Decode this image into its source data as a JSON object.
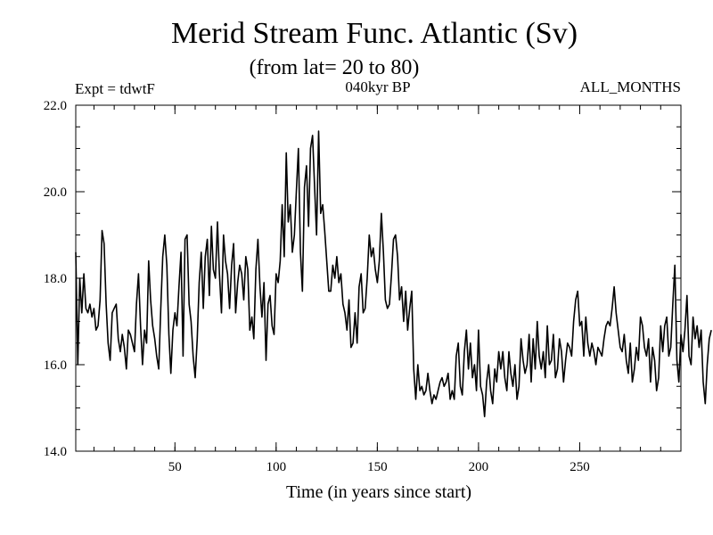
{
  "chart_data": {
    "type": "line",
    "title": "Merid Stream Func. Atlantic (Sv)",
    "subtitle": "(from lat= 20 to 80)",
    "left_label": "Expt = tdwtF",
    "center_label": "040kyr BP",
    "right_label": "ALL_MONTHS",
    "xlabel": "Time (in years since start)",
    "ylabel": "",
    "xlim": [
      1,
      300
    ],
    "ylim": [
      14.0,
      22.0
    ],
    "x_ticks": [
      50,
      100,
      150,
      200,
      250
    ],
    "x_tick_labels": [
      "50",
      "100",
      "150",
      "200",
      "250"
    ],
    "y_ticks": [
      14.0,
      16.0,
      18.0,
      20.0,
      22.0
    ],
    "y_tick_labels": [
      "14.0",
      "16.0",
      "18.0",
      "20.0",
      "22.0"
    ],
    "x_minor_step": 10,
    "y_minor_step": 0.5,
    "grid": false,
    "series": [
      {
        "name": "Merid Stream Func. Atlantic",
        "color": "#000000",
        "x_start": 1,
        "x_step": 1,
        "values": [
          18.6,
          16.0,
          18.0,
          17.2,
          18.1,
          17.3,
          17.2,
          17.4,
          17.1,
          17.3,
          16.8,
          16.9,
          17.5,
          19.1,
          18.8,
          17.4,
          16.5,
          16.1,
          17.2,
          17.3,
          17.4,
          16.6,
          16.3,
          16.7,
          16.4,
          15.9,
          16.8,
          16.7,
          16.5,
          16.3,
          17.4,
          18.1,
          16.9,
          16.0,
          16.8,
          16.5,
          18.4,
          17.5,
          16.9,
          16.6,
          16.2,
          15.9,
          17.3,
          18.5,
          19.0,
          18.3,
          16.7,
          15.8,
          16.8,
          17.2,
          16.9,
          17.8,
          18.6,
          16.2,
          18.9,
          19.0,
          17.4,
          17.0,
          16.2,
          15.7,
          16.6,
          17.9,
          18.6,
          17.3,
          18.5,
          18.9,
          17.6,
          19.2,
          18.2,
          18.0,
          19.3,
          18.1,
          17.2,
          19.0,
          18.4,
          18.1,
          17.3,
          18.3,
          18.8,
          17.2,
          17.9,
          18.3,
          18.1,
          17.5,
          18.5,
          18.2,
          16.8,
          17.1,
          16.6,
          18.2,
          18.9,
          17.8,
          17.1,
          17.9,
          16.1,
          17.4,
          17.6,
          16.9,
          16.7,
          18.1,
          17.9,
          18.4,
          19.7,
          18.5,
          20.9,
          19.3,
          19.7,
          18.6,
          19.0,
          20.0,
          21.0,
          18.6,
          17.7,
          20.1,
          20.6,
          19.2,
          21.0,
          21.3,
          20.1,
          19.0,
          21.4,
          19.5,
          19.7,
          19.1,
          18.4,
          17.7,
          17.7,
          18.3,
          18.0,
          18.5,
          17.9,
          18.1,
          17.4,
          17.2,
          16.8,
          17.5,
          16.4,
          16.5,
          17.2,
          16.5,
          17.8,
          18.1,
          17.2,
          17.3,
          18.0,
          19.0,
          18.5,
          18.7,
          18.2,
          17.9,
          18.4,
          19.5,
          18.6,
          17.5,
          17.3,
          17.4,
          18.1,
          18.9,
          19.0,
          18.5,
          17.5,
          17.8,
          17.0,
          17.7,
          16.8,
          17.3,
          17.7,
          15.9,
          15.2,
          16.0,
          15.4,
          15.5,
          15.3,
          15.4,
          15.8,
          15.4,
          15.1,
          15.3,
          15.2,
          15.4,
          15.6,
          15.7,
          15.5,
          15.6,
          15.8,
          15.2,
          15.4,
          15.2,
          16.2,
          16.5,
          15.5,
          15.3,
          16.3,
          16.8,
          15.9,
          16.5,
          15.7,
          16.0,
          15.4,
          16.8,
          15.5,
          15.3,
          14.8,
          15.6,
          16.0,
          15.4,
          15.1,
          15.9,
          15.6,
          16.3,
          15.9,
          16.3,
          15.7,
          15.4,
          16.3,
          15.8,
          15.5,
          16.0,
          15.2,
          15.5,
          16.6,
          16.1,
          15.8,
          16.0,
          16.7,
          15.6,
          16.6,
          15.9,
          17.0,
          16.2,
          15.9,
          16.3,
          15.7,
          16.9,
          16.0,
          16.1,
          16.7,
          15.7,
          15.9,
          16.6,
          16.3,
          15.6,
          16.1,
          16.5,
          16.4,
          16.2,
          17.0,
          17.5,
          17.7,
          16.9,
          17.0,
          16.2,
          17.1,
          16.5,
          16.2,
          16.5,
          16.3,
          16.0,
          16.4,
          16.3,
          16.2,
          16.6,
          16.9,
          17.0,
          16.9,
          17.3,
          17.8,
          17.2,
          16.8,
          16.4,
          16.3,
          16.7,
          16.1,
          15.8,
          16.5,
          15.6,
          15.9,
          16.4,
          16.1,
          17.1,
          16.9,
          16.4,
          16.2,
          16.6,
          15.6,
          16.4,
          16.1,
          15.4,
          15.7,
          16.9,
          16.3,
          16.9,
          17.1,
          16.2,
          16.4,
          17.4,
          18.3,
          16.1,
          15.6,
          16.7,
          16.3,
          16.8,
          17.6,
          16.2,
          16.0,
          17.1,
          16.6,
          16.9,
          16.4,
          16.8,
          15.6,
          15.1,
          16.0,
          16.6,
          16.8
        ]
      }
    ]
  }
}
